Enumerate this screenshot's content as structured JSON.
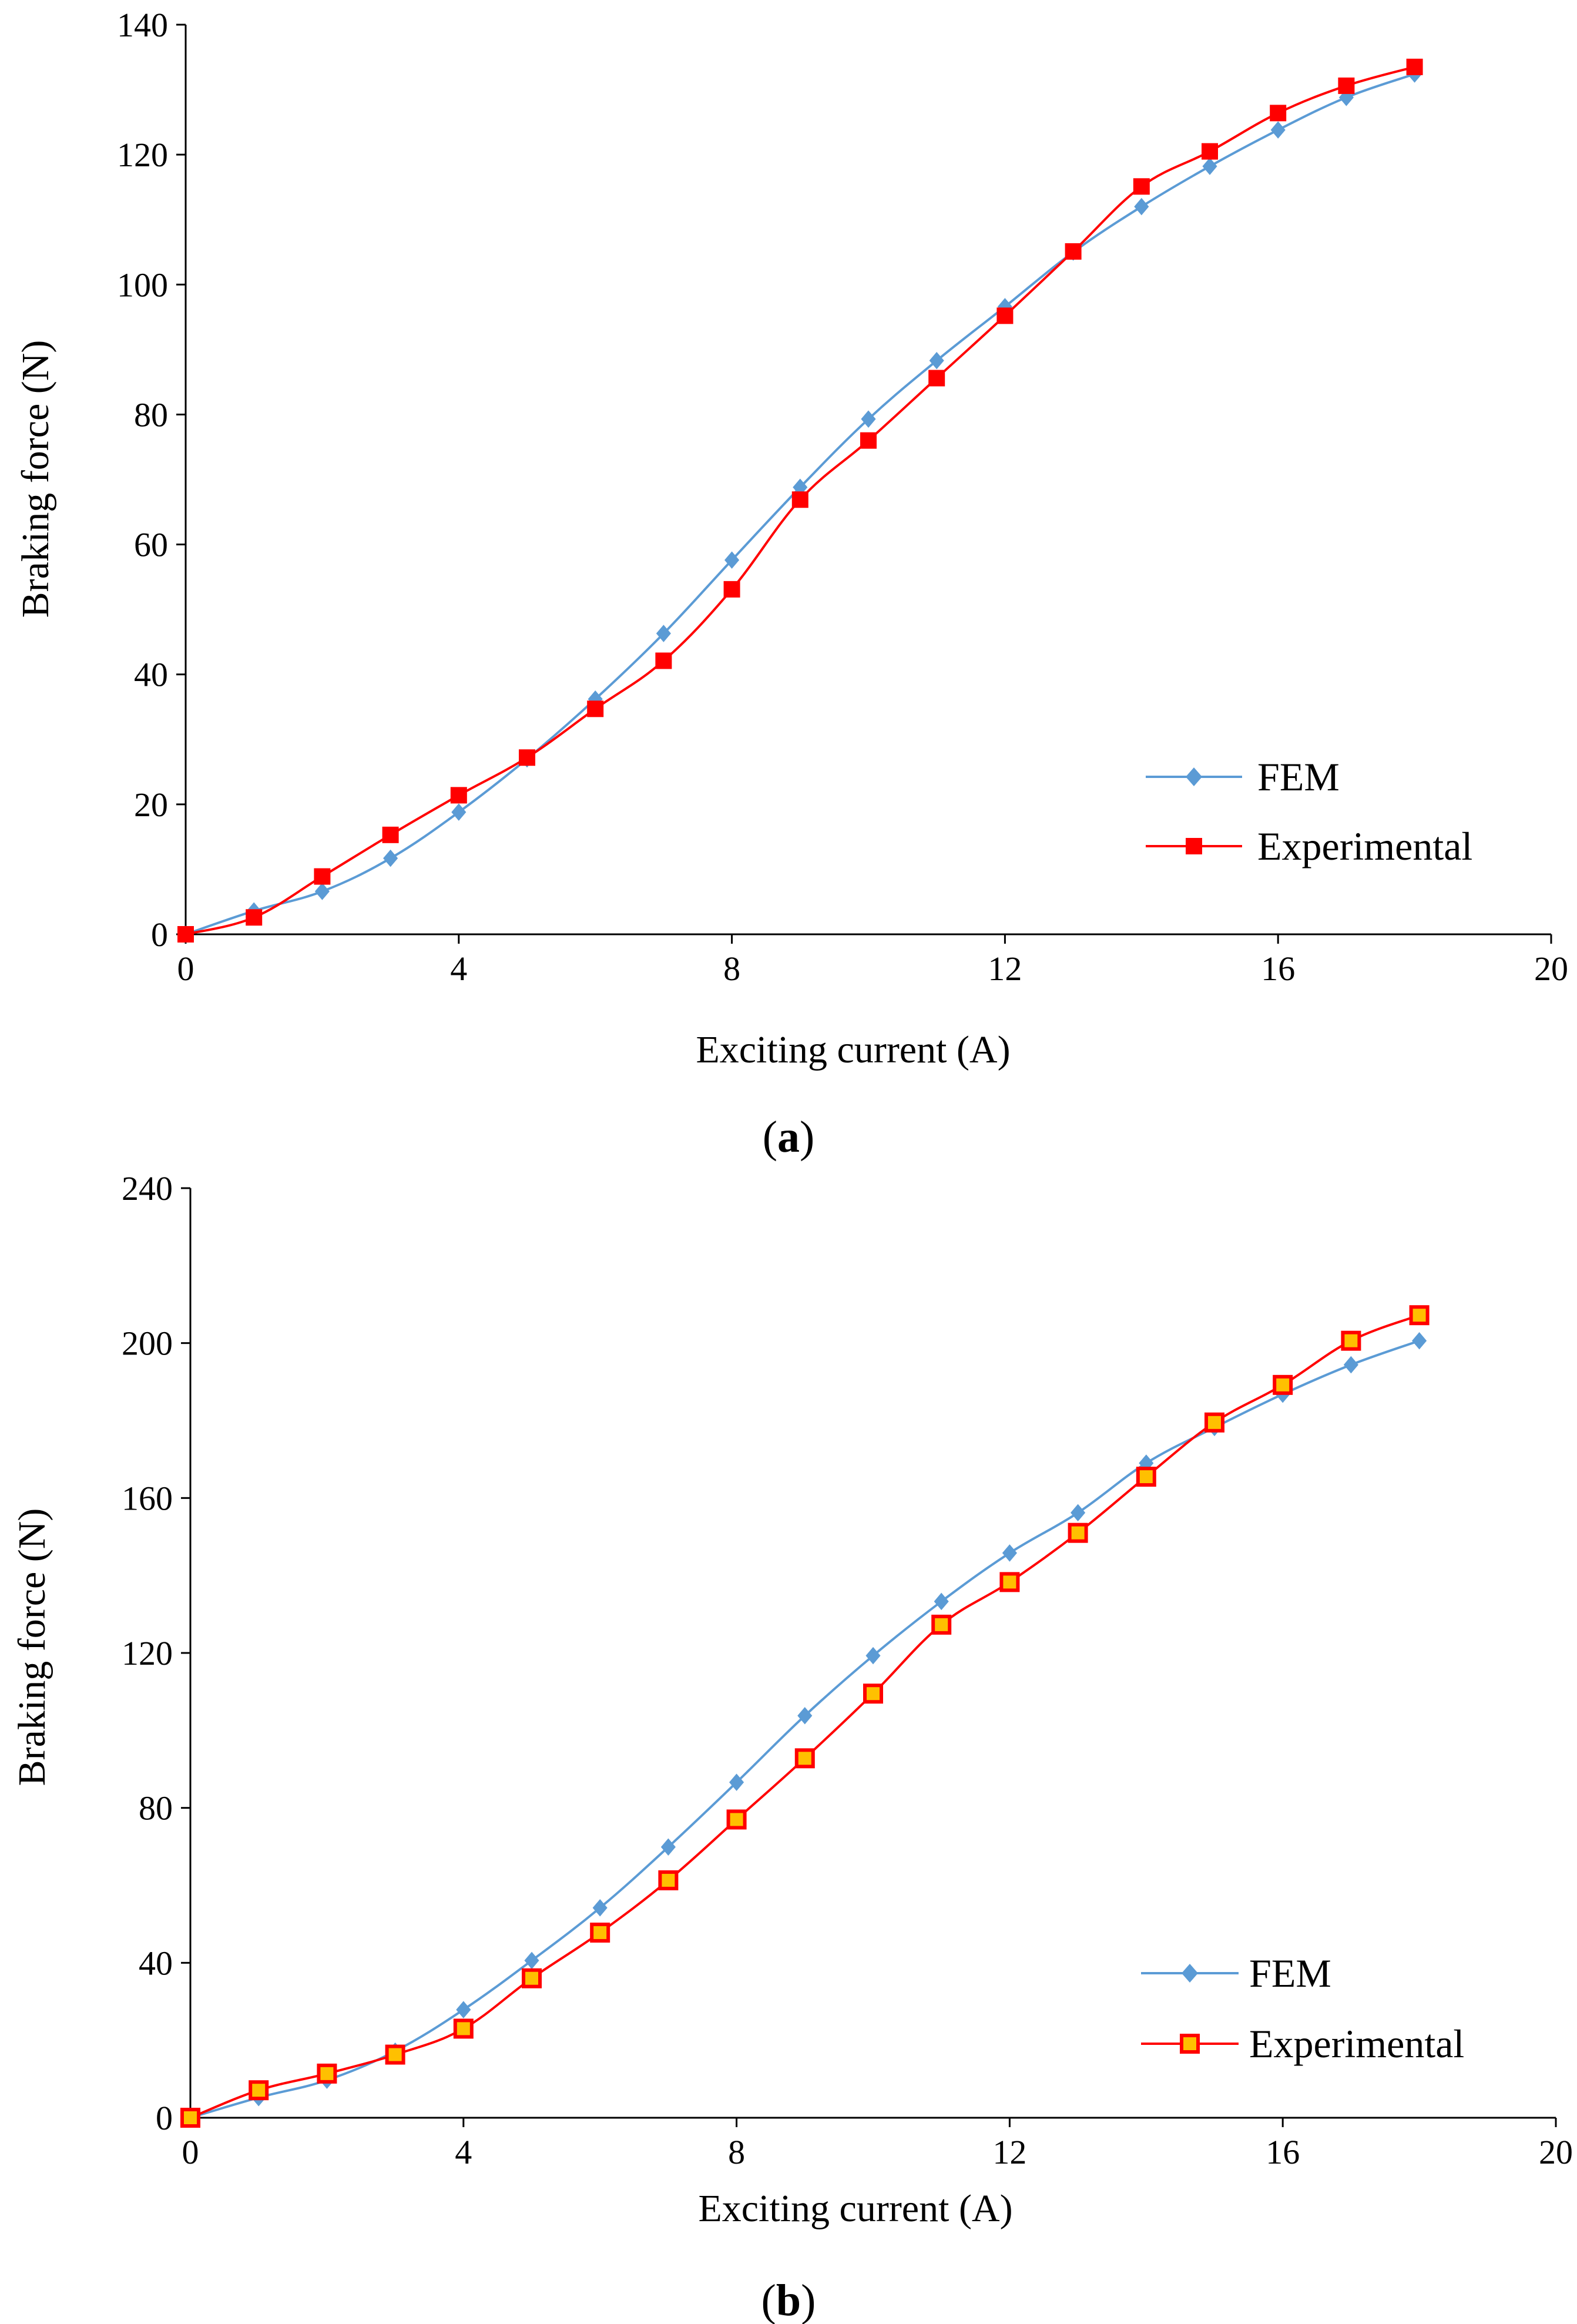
{
  "chart_data": [
    {
      "type": "line",
      "caption": "a",
      "xlabel": "Exciting current (A)",
      "ylabel": "Braking force (N)",
      "xlim": [
        0,
        20
      ],
      "ylim": [
        0,
        140
      ],
      "xticks": [
        "0",
        "4",
        "8",
        "12",
        "16",
        "20"
      ],
      "yticks": [
        "0",
        "20",
        "40",
        "60",
        "80",
        "100",
        "120",
        "140"
      ],
      "x": [
        0,
        1,
        2,
        3,
        4,
        5,
        6,
        7,
        8,
        9,
        10,
        11,
        12,
        13,
        14,
        15,
        16,
        17,
        18
      ],
      "series": [
        {
          "name": "FEM",
          "color": "#5b9bd5",
          "marker": "diamond",
          "values": [
            0,
            3.6,
            6.6,
            11.7,
            18.8,
            27,
            36.2,
            46.3,
            57.6,
            68.8,
            79.3,
            88.3,
            96.6,
            105,
            112,
            118.2,
            123.8,
            128.8,
            132.4
          ]
        },
        {
          "name": "Experimental",
          "color": "#ff0000",
          "marker": "square",
          "values": [
            0,
            2.6,
            8.9,
            15.3,
            21.4,
            27.2,
            34.7,
            42.1,
            53.1,
            66.9,
            76,
            85.6,
            95.2,
            105.1,
            115.1,
            120.5,
            126.4,
            130.6,
            133.5
          ]
        }
      ],
      "legend_position": "bottom-right"
    },
    {
      "type": "line",
      "caption": "b",
      "xlabel": "Exciting current (A)",
      "ylabel": "Braking force (N)",
      "xlim": [
        0,
        20
      ],
      "ylim": [
        0,
        240
      ],
      "xticks": [
        "0",
        "4",
        "8",
        "12",
        "16",
        "20"
      ],
      "yticks": [
        "0",
        "40",
        "80",
        "120",
        "160",
        "200",
        "240"
      ],
      "x": [
        0,
        1,
        2,
        3,
        4,
        5,
        6,
        7,
        8,
        9,
        10,
        11,
        12,
        13,
        14,
        15,
        16,
        17,
        18
      ],
      "series": [
        {
          "name": "FEM",
          "color": "#5b9bd5",
          "marker": "diamond",
          "values": [
            0,
            5.2,
            9.7,
            17.2,
            27.9,
            40.6,
            54.2,
            69.9,
            86.6,
            103.8,
            119.3,
            133.3,
            145.8,
            156.2,
            169,
            178.2,
            186.8,
            194.4,
            200.6
          ]
        },
        {
          "name": "Experimental",
          "color": "#ff0000",
          "marker": "square",
          "values": [
            0,
            7.1,
            11.4,
            16.3,
            23,
            36,
            47.8,
            61.3,
            77,
            92.8,
            109.5,
            127.3,
            138.3,
            151,
            165.5,
            179.5,
            189.2,
            200.6,
            207.2
          ]
        }
      ],
      "legend_position": "bottom-right"
    }
  ]
}
